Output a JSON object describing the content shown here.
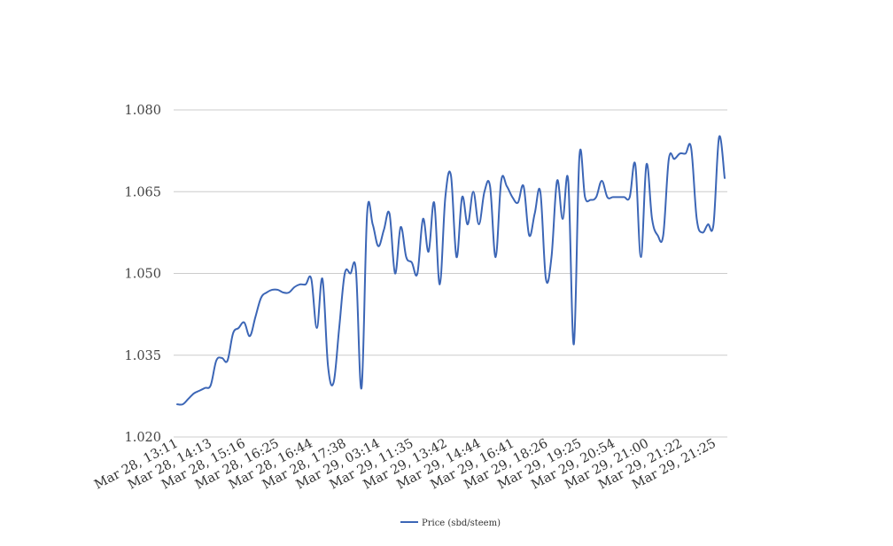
{
  "chart_data": {
    "type": "line",
    "title": "",
    "xlabel": "",
    "ylabel": "",
    "ylim": [
      1.02,
      1.08
    ],
    "y_ticks": [
      "1.020",
      "1.035",
      "1.050",
      "1.065",
      "1.080"
    ],
    "x_tick_labels": [
      "Mar 28, 13:11",
      "Mar 28, 14:13",
      "Mar 28, 15:16",
      "Mar 28, 16:25",
      "Mar 28, 16:44",
      "Mar 28, 17:38",
      "Mar 29, 03:14",
      "Mar 29, 11:35",
      "Mar 29, 13:42",
      "Mar 29, 14:44",
      "Mar 29, 16:41",
      "Mar 29, 18:26",
      "Mar 29, 19:25",
      "Mar 29, 20:54",
      "Mar 29, 21:00",
      "Mar 29, 21:22",
      "Mar 29, 21:25"
    ],
    "grid": true,
    "legend_position": "bottom-center",
    "series": [
      {
        "name": "Price (sbd/steem)",
        "color": "#3c66b6",
        "values": [
          1.026,
          1.026,
          1.027,
          1.028,
          1.0285,
          1.029,
          1.0295,
          1.034,
          1.0345,
          1.034,
          1.039,
          1.04,
          1.041,
          1.0385,
          1.042,
          1.0455,
          1.0465,
          1.047,
          1.047,
          1.0465,
          1.0465,
          1.0475,
          1.048,
          1.048,
          1.049,
          1.04,
          1.049,
          1.033,
          1.03,
          1.04,
          1.05,
          1.05,
          1.0505,
          1.029,
          1.061,
          1.059,
          1.055,
          1.058,
          1.061,
          1.05,
          1.0585,
          1.053,
          1.052,
          1.05,
          1.06,
          1.054,
          1.063,
          1.048,
          1.064,
          1.068,
          1.053,
          1.064,
          1.059,
          1.065,
          1.059,
          1.065,
          1.066,
          1.053,
          1.067,
          1.066,
          1.064,
          1.063,
          1.066,
          1.057,
          1.061,
          1.065,
          1.049,
          1.053,
          1.067,
          1.06,
          1.067,
          1.037,
          1.0715,
          1.064,
          1.0635,
          1.064,
          1.067,
          1.064,
          1.064,
          1.064,
          1.064,
          1.064,
          1.07,
          1.053,
          1.07,
          1.06,
          1.057,
          1.057,
          1.071,
          1.071,
          1.072,
          1.072,
          1.073,
          1.06,
          1.0575,
          1.059,
          1.059,
          1.075,
          1.0675
        ]
      }
    ]
  }
}
